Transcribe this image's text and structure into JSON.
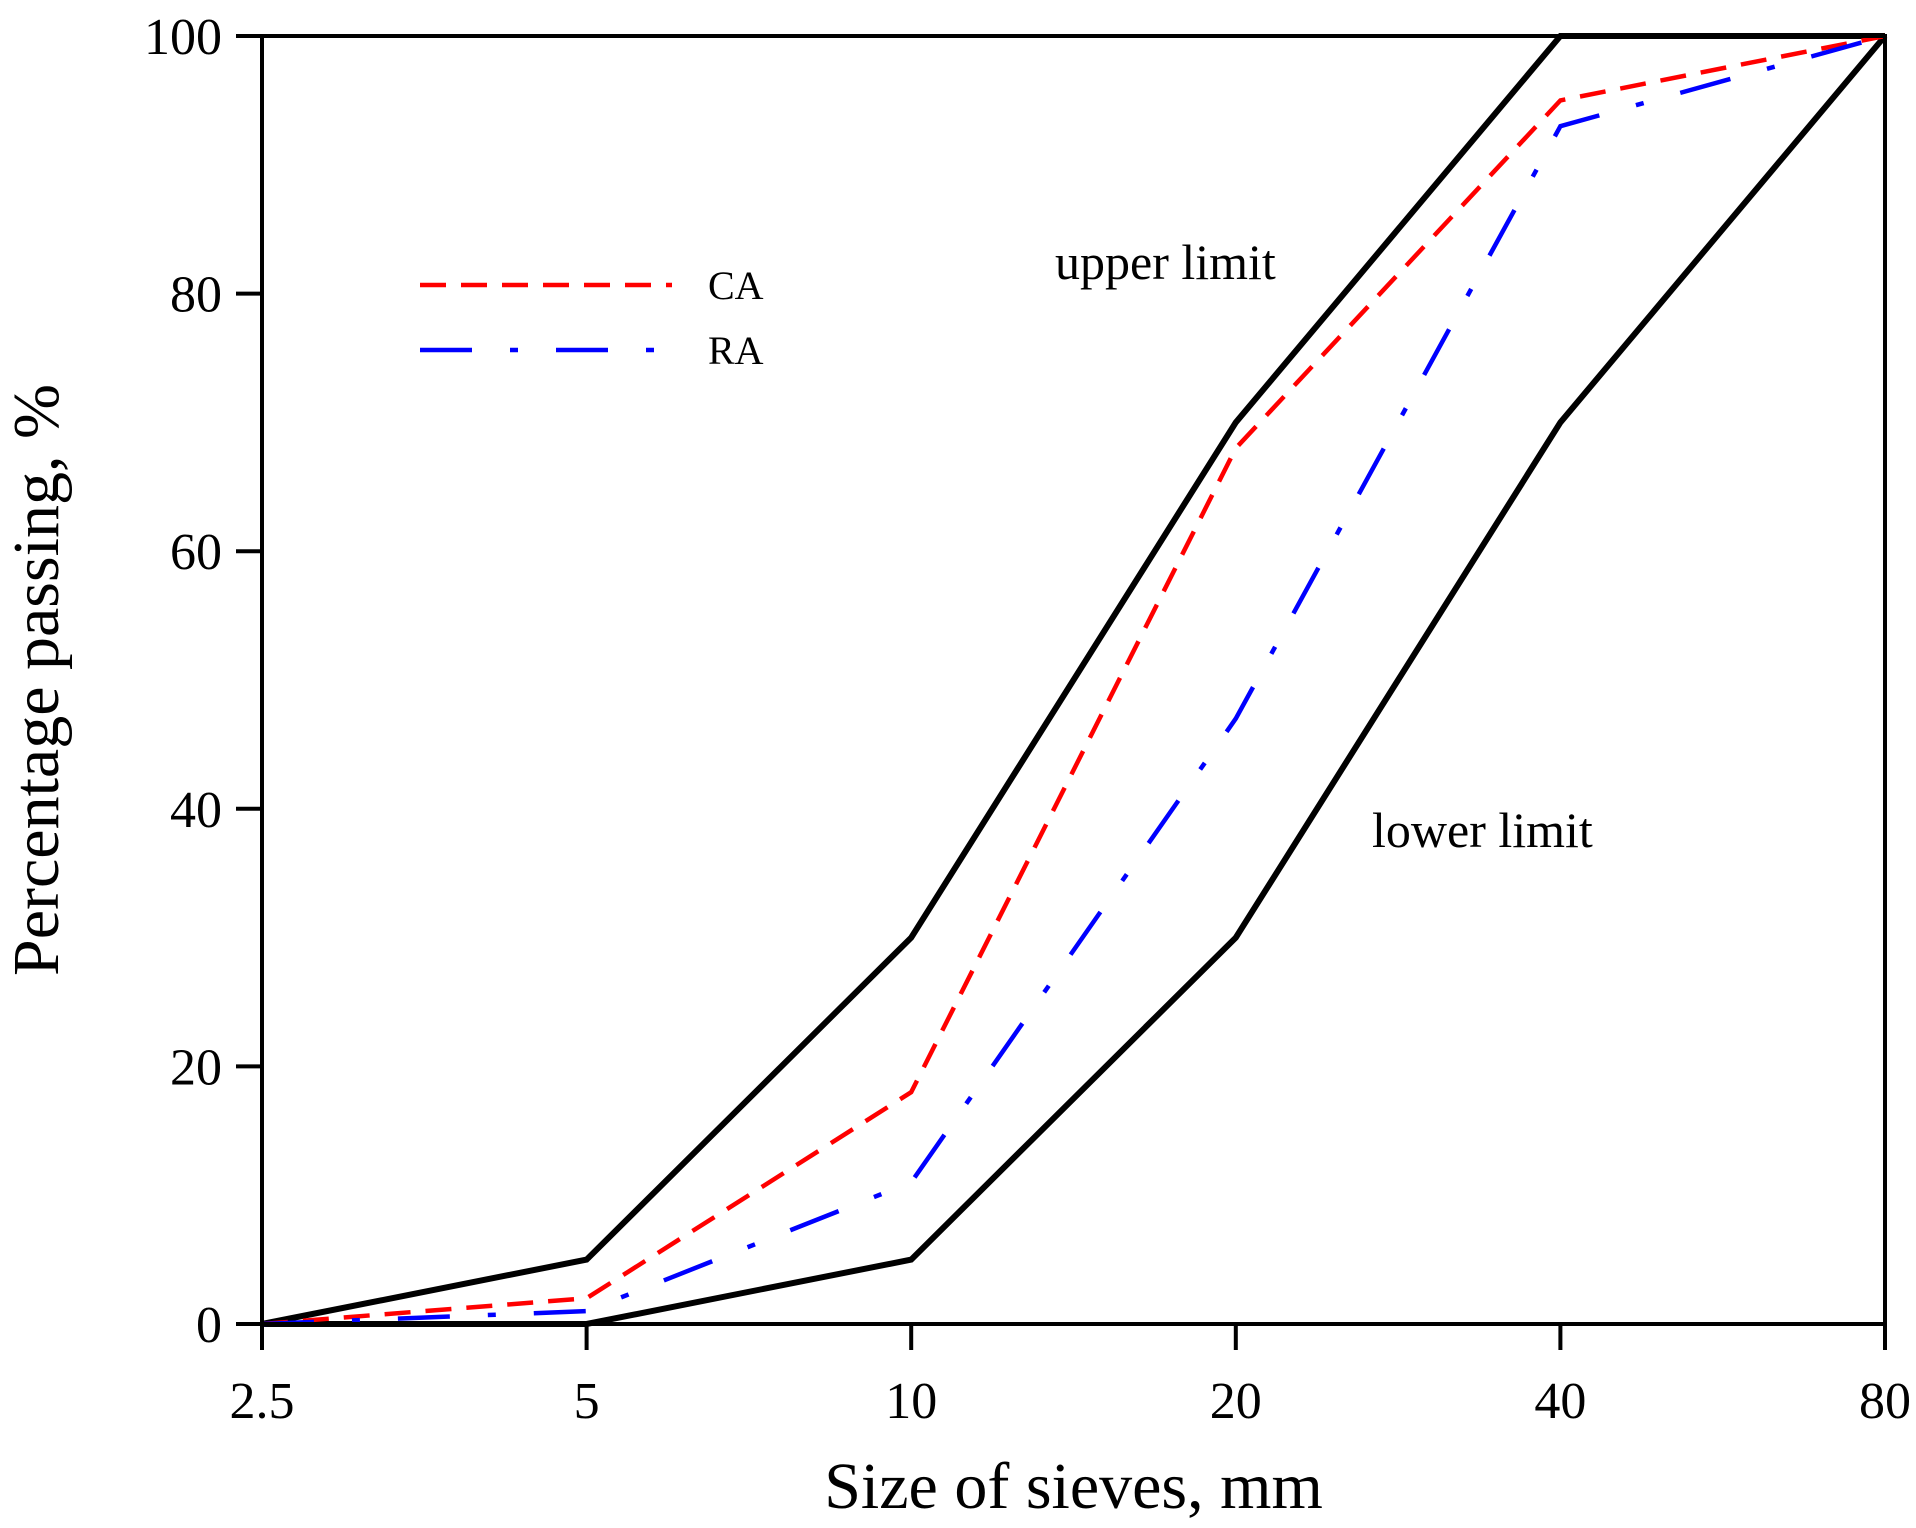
{
  "chart_data": {
    "type": "line",
    "xlabel": "Size of sieves, mm",
    "ylabel": "Percentage passing, %",
    "x_scale": "log2",
    "x": [
      2.5,
      5,
      10,
      20,
      40,
      80
    ],
    "x_tick_labels": [
      "2.5",
      "5",
      "10",
      "20",
      "40",
      "80"
    ],
    "ylim": [
      0,
      100
    ],
    "y_ticks": [
      0,
      20,
      40,
      60,
      80,
      100
    ],
    "grid": false,
    "legend_position": "top-left",
    "series": [
      {
        "name": "CA",
        "values": [
          0,
          2,
          18,
          68,
          95,
          100
        ],
        "color": "#ff0000",
        "style": "dashed"
      },
      {
        "name": "RA",
        "values": [
          0,
          1,
          11,
          47,
          93,
          100
        ],
        "color": "#0000ff",
        "style": "dash-dot"
      }
    ],
    "limits": [
      {
        "label": "upper limit",
        "values": [
          0,
          5,
          30,
          70,
          100,
          100
        ],
        "color": "#000000"
      },
      {
        "label": "lower limit",
        "values": [
          0,
          0,
          5,
          30,
          70,
          100
        ],
        "color": "#000000"
      }
    ]
  }
}
